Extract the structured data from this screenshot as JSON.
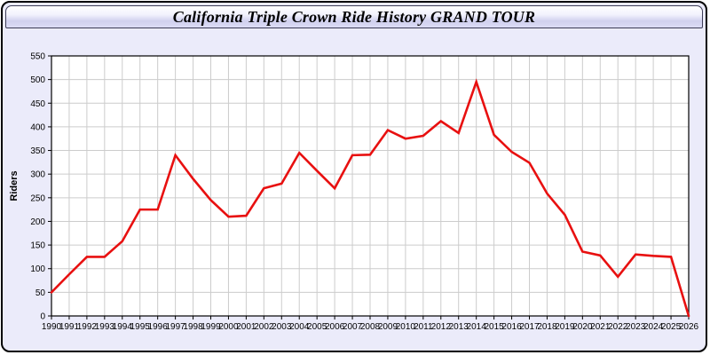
{
  "window": {
    "title": "California Triple Crown Ride History GRAND TOUR"
  },
  "chart_data": {
    "type": "line",
    "title": "California Triple Crown Ride History GRAND TOUR",
    "xlabel": "",
    "ylabel": "Riders",
    "ylim": [
      0,
      550
    ],
    "ytick_step": 50,
    "grid": true,
    "legend": "none",
    "x": [
      1990,
      1991,
      1992,
      1993,
      1994,
      1995,
      1996,
      1997,
      1998,
      1999,
      2000,
      2001,
      2002,
      2003,
      2004,
      2005,
      2006,
      2007,
      2008,
      2009,
      2010,
      2011,
      2012,
      2013,
      2014,
      2015,
      2016,
      2017,
      2018,
      2019,
      2020,
      2021,
      2022,
      2023,
      2024,
      2025,
      2026
    ],
    "series": [
      {
        "name": "Riders",
        "color": "#e81010",
        "values": [
          50,
          88,
          125,
          125,
          158,
          225,
          225,
          340,
          290,
          245,
          210,
          212,
          270,
          280,
          345,
          307,
          270,
          340,
          341,
          393,
          375,
          381,
          412,
          387,
          495,
          383,
          347,
          324,
          259,
          214,
          136,
          128,
          83,
          130,
          127,
          125,
          0
        ]
      }
    ],
    "colors": {
      "plot_bg": "#ffffff",
      "grid_color": "#cccccc",
      "axis_color": "#000000",
      "page_bg": "#ebebfa",
      "tick_label_color": "#000000"
    }
  }
}
